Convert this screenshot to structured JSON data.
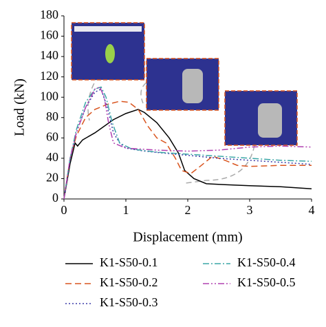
{
  "chart_data": {
    "type": "line",
    "xlabel": "Displacement (mm)",
    "ylabel": "Load (kN)",
    "xlim": [
      0,
      4
    ],
    "xticks": [
      0,
      1,
      2,
      3,
      4
    ],
    "ylim": [
      0,
      180
    ],
    "yticks": [
      0,
      20,
      40,
      60,
      80,
      100,
      120,
      140,
      160,
      180
    ],
    "series": [
      {
        "name": "K1-S50-0.1",
        "color": "#000000",
        "linestyle": "solid",
        "x": [
          0,
          0.1,
          0.18,
          0.22,
          0.3,
          0.5,
          0.8,
          1.0,
          1.2,
          1.3,
          1.5,
          1.7,
          1.85,
          1.95,
          2.1,
          2.3,
          2.6,
          3,
          3.5,
          4
        ],
        "values": [
          0,
          35,
          55,
          52,
          58,
          65,
          78,
          84,
          88,
          85,
          75,
          60,
          45,
          28,
          20,
          15,
          14,
          13,
          12,
          10
        ]
      },
      {
        "name": "K1-S50-0.2",
        "color": "#d9541e",
        "linestyle": "dashed",
        "x": [
          0,
          0.1,
          0.2,
          0.35,
          0.5,
          0.7,
          0.9,
          1.05,
          1.2,
          1.35,
          1.5,
          1.65,
          1.8,
          1.9,
          2.05,
          2.2,
          2.4,
          2.6,
          2.8,
          3.0,
          3.5,
          4
        ],
        "values": [
          0,
          40,
          62,
          80,
          88,
          93,
          96,
          95,
          88,
          72,
          60,
          55,
          40,
          28,
          25,
          32,
          42,
          38,
          33,
          32,
          33,
          33
        ]
      },
      {
        "name": "K1-S50-0.3",
        "color": "#3a3aa8",
        "linestyle": "dotted",
        "x": [
          0,
          0.1,
          0.2,
          0.35,
          0.5,
          0.6,
          0.7,
          0.8,
          0.9,
          1.0,
          1.3,
          1.8,
          2.5,
          3,
          3.5,
          4
        ],
        "values": [
          0,
          40,
          65,
          90,
          105,
          108,
          90,
          65,
          55,
          50,
          47,
          44,
          40,
          38,
          36,
          34
        ]
      },
      {
        "name": "K1-S50-0.4",
        "color": "#3aa6a6",
        "linestyle": "dashdot",
        "x": [
          0,
          0.1,
          0.2,
          0.35,
          0.5,
          0.6,
          0.68,
          0.78,
          0.9,
          1.1,
          1.5,
          2,
          2.5,
          3,
          3.5,
          4
        ],
        "values": [
          0,
          40,
          68,
          95,
          108,
          110,
          100,
          75,
          55,
          49,
          46,
          44,
          42,
          40,
          38,
          37
        ]
      },
      {
        "name": "K1-S50-0.5",
        "color": "#b040b0",
        "linestyle": "dashdotdot",
        "x": [
          0,
          0.1,
          0.2,
          0.35,
          0.5,
          0.58,
          0.65,
          0.72,
          0.8,
          1.0,
          1.5,
          2,
          2.5,
          3,
          3.5,
          4
        ],
        "values": [
          0,
          40,
          65,
          90,
          108,
          110,
          100,
          75,
          55,
          50,
          48,
          47,
          48,
          51,
          52,
          51
        ]
      }
    ]
  }
}
